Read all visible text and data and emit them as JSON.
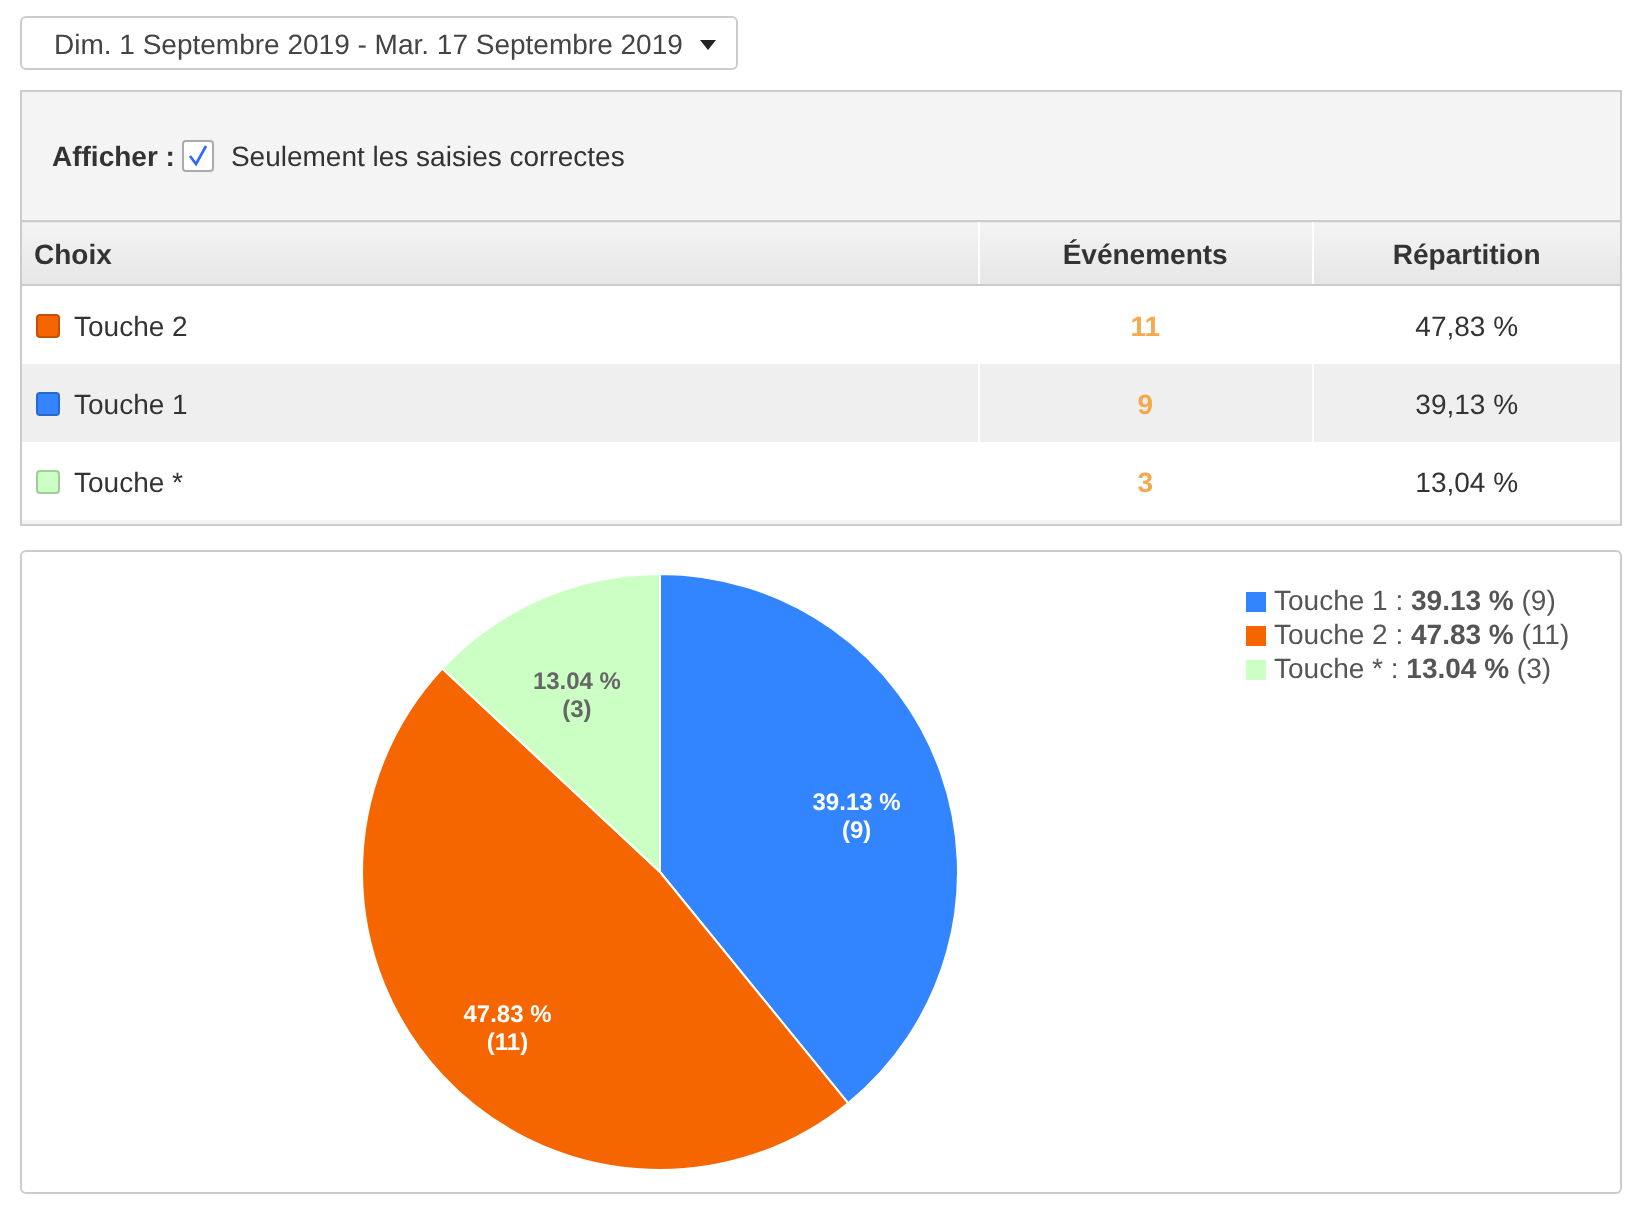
{
  "chart_data": {
    "type": "pie",
    "subtitle": "Dim. 1 Septembre 2019 - Mar. 17 Septembre 2019",
    "categories": [
      "Touche 1",
      "Touche 2",
      "Touche *"
    ],
    "values": [
      39.13,
      47.83,
      13.04
    ],
    "colors": [
      "#3385ff",
      "#f56600",
      "#ccffc4"
    ],
    "value_labels": [
      "39.13 %\n(9)",
      "47.83 %\n(11)",
      "13.04 %\n(3)"
    ],
    "legend": "top right",
    "annotations": [
      "Afficher :",
      "Seulement les saisies correctes",
      "Choix",
      "Événements",
      "Répartition",
      "11",
      "47,83 %",
      "9",
      "39,13 %",
      "3",
      "13,04 %",
      ":"
    ]
  }
}
